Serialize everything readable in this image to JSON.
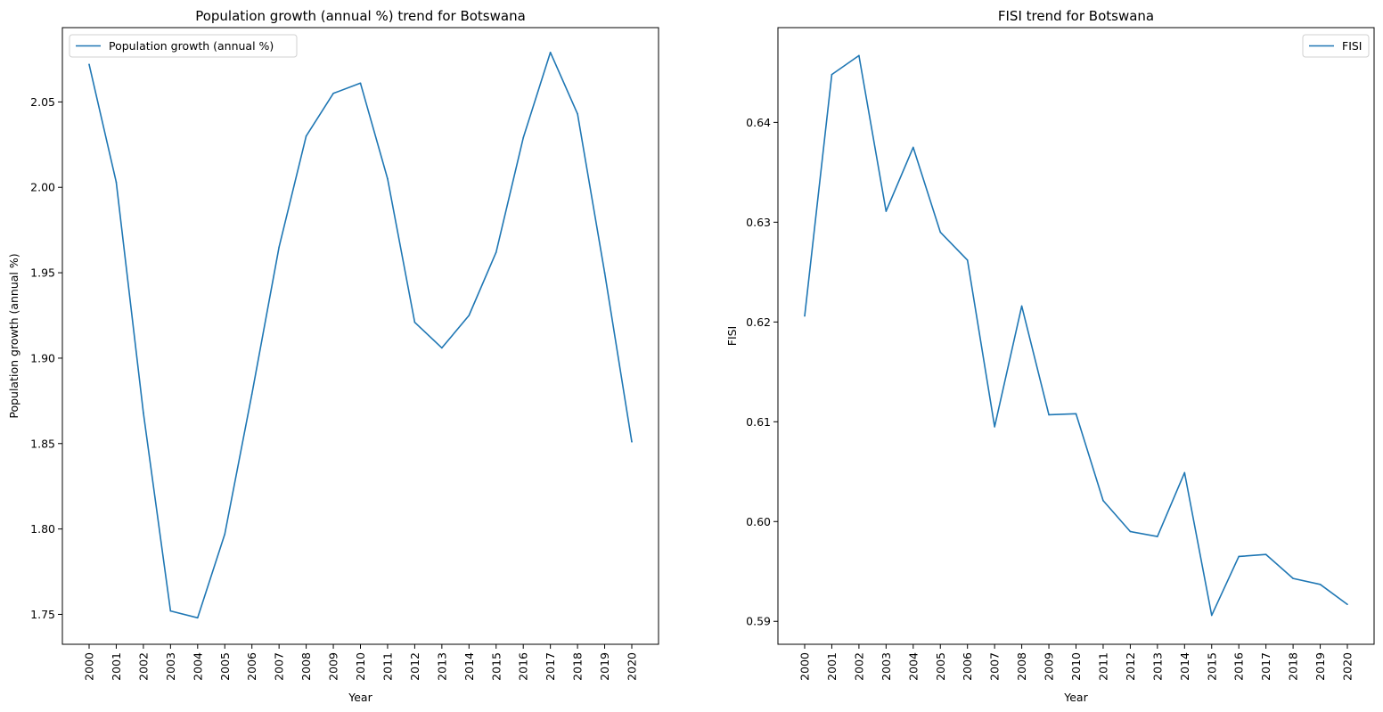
{
  "chart_data": [
    {
      "type": "line",
      "title": "Population growth (annual %) trend for Botswana",
      "xlabel": "Year",
      "ylabel": "Population growth (annual %)",
      "x": [
        "2000",
        "2001",
        "2002",
        "2003",
        "2004",
        "2005",
        "2006",
        "2007",
        "2008",
        "2009",
        "2010",
        "2011",
        "2012",
        "2013",
        "2014",
        "2015",
        "2016",
        "2017",
        "2018",
        "2019",
        "2020"
      ],
      "series": [
        {
          "name": "Population growth (annual %)",
          "values": [
            2.072,
            2.003,
            1.868,
            1.752,
            1.748,
            1.797,
            1.879,
            1.965,
            2.03,
            2.055,
            2.061,
            2.005,
            1.921,
            1.906,
            1.925,
            1.962,
            2.029,
            2.079,
            2.043,
            1.95,
            1.851
          ],
          "color": "#1f77b4"
        }
      ],
      "ylim": [
        1.7325,
        2.0935
      ],
      "yticks": [
        1.75,
        1.8,
        1.85,
        1.9,
        1.95,
        2.0,
        2.05
      ],
      "ytick_labels": [
        "1.75",
        "1.80",
        "1.85",
        "1.90",
        "1.95",
        "2.00",
        "2.05"
      ],
      "legend": "upper-left",
      "grid": false
    },
    {
      "type": "line",
      "title": "FISI trend for Botswana",
      "xlabel": "Year",
      "ylabel": "FISI",
      "x": [
        "2000",
        "2001",
        "2002",
        "2003",
        "2004",
        "2005",
        "2006",
        "2007",
        "2008",
        "2009",
        "2010",
        "2011",
        "2012",
        "2013",
        "2014",
        "2015",
        "2016",
        "2017",
        "2018",
        "2019",
        "2020"
      ],
      "series": [
        {
          "name": "FISI",
          "values": [
            0.6206,
            0.6448,
            0.6467,
            0.6311,
            0.6375,
            0.629,
            0.6262,
            0.6095,
            0.6216,
            0.6107,
            0.6108,
            0.6021,
            0.599,
            0.5985,
            0.6049,
            0.5906,
            0.5965,
            0.5967,
            0.5943,
            0.5937,
            0.5917
          ],
          "color": "#1f77b4"
        }
      ],
      "ylim": [
        0.5877,
        0.6495
      ],
      "yticks": [
        0.59,
        0.6,
        0.61,
        0.62,
        0.63,
        0.64
      ],
      "ytick_labels": [
        "0.59",
        "0.60",
        "0.61",
        "0.62",
        "0.63",
        "0.64"
      ],
      "legend": "upper-right",
      "grid": false
    }
  ]
}
